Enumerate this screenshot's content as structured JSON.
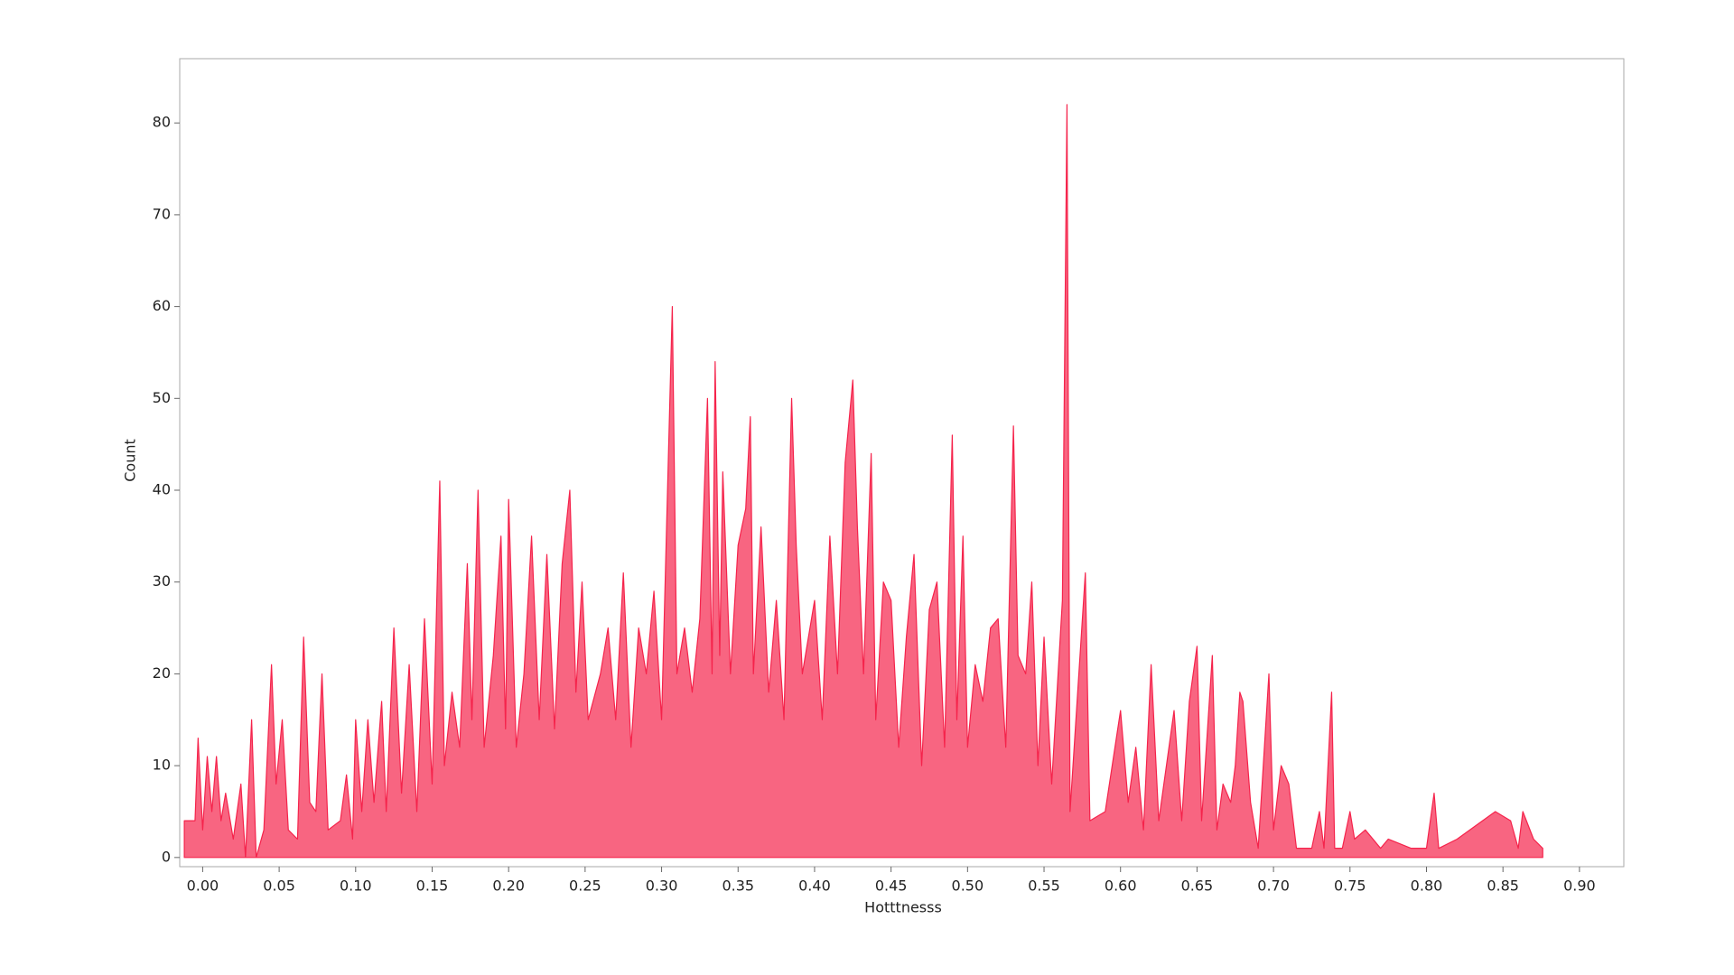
{
  "chart_data": {
    "type": "area",
    "xlabel": "Hotttnesss",
    "ylabel": "Count",
    "color": "#f5234b",
    "x": [
      -0.012,
      -0.005,
      -0.003,
      0.0,
      0.003,
      0.006,
      0.009,
      0.012,
      0.015,
      0.02,
      0.025,
      0.028,
      0.032,
      0.035,
      0.04,
      0.045,
      0.048,
      0.052,
      0.056,
      0.062,
      0.066,
      0.07,
      0.074,
      0.078,
      0.082,
      0.09,
      0.094,
      0.098,
      0.1,
      0.104,
      0.108,
      0.112,
      0.117,
      0.12,
      0.125,
      0.13,
      0.135,
      0.14,
      0.145,
      0.15,
      0.155,
      0.158,
      0.163,
      0.168,
      0.173,
      0.176,
      0.18,
      0.184,
      0.19,
      0.195,
      0.198,
      0.2,
      0.205,
      0.21,
      0.215,
      0.22,
      0.225,
      0.23,
      0.235,
      0.24,
      0.244,
      0.248,
      0.252,
      0.26,
      0.265,
      0.27,
      0.275,
      0.28,
      0.285,
      0.29,
      0.295,
      0.3,
      0.307,
      0.31,
      0.315,
      0.32,
      0.325,
      0.33,
      0.333,
      0.335,
      0.338,
      0.34,
      0.345,
      0.35,
      0.355,
      0.358,
      0.36,
      0.365,
      0.37,
      0.375,
      0.38,
      0.385,
      0.388,
      0.392,
      0.4,
      0.405,
      0.41,
      0.415,
      0.42,
      0.425,
      0.428,
      0.432,
      0.437,
      0.44,
      0.445,
      0.45,
      0.455,
      0.46,
      0.465,
      0.47,
      0.475,
      0.48,
      0.485,
      0.49,
      0.493,
      0.497,
      0.5,
      0.505,
      0.51,
      0.515,
      0.52,
      0.525,
      0.53,
      0.533,
      0.538,
      0.542,
      0.546,
      0.55,
      0.555,
      0.562,
      0.565,
      0.567,
      0.572,
      0.577,
      0.58,
      0.59,
      0.6,
      0.605,
      0.61,
      0.615,
      0.62,
      0.625,
      0.63,
      0.635,
      0.64,
      0.645,
      0.65,
      0.653,
      0.66,
      0.663,
      0.667,
      0.672,
      0.675,
      0.678,
      0.68,
      0.685,
      0.69,
      0.697,
      0.7,
      0.705,
      0.71,
      0.715,
      0.725,
      0.73,
      0.733,
      0.738,
      0.74,
      0.745,
      0.75,
      0.753,
      0.76,
      0.77,
      0.775,
      0.79,
      0.8,
      0.805,
      0.808,
      0.82,
      0.845,
      0.855,
      0.86,
      0.863,
      0.87,
      0.876
    ],
    "values": [
      4,
      4,
      13,
      3,
      11,
      5,
      11,
      4,
      7,
      2,
      8,
      0,
      15,
      0,
      3,
      21,
      8,
      15,
      3,
      2,
      24,
      6,
      5,
      20,
      3,
      4,
      9,
      2,
      15,
      5,
      15,
      6,
      17,
      5,
      25,
      7,
      21,
      5,
      26,
      8,
      41,
      10,
      18,
      12,
      32,
      15,
      40,
      12,
      22,
      35,
      14,
      39,
      12,
      20,
      35,
      15,
      33,
      14,
      32,
      40,
      18,
      30,
      15,
      20,
      25,
      15,
      31,
      12,
      25,
      20,
      29,
      15,
      60,
      20,
      25,
      18,
      26,
      50,
      20,
      54,
      22,
      42,
      20,
      34,
      38,
      48,
      20,
      36,
      18,
      28,
      15,
      50,
      34,
      20,
      28,
      15,
      35,
      20,
      43,
      52,
      36,
      20,
      44,
      15,
      30,
      28,
      12,
      24,
      33,
      10,
      27,
      30,
      12,
      46,
      15,
      35,
      12,
      21,
      17,
      25,
      26,
      12,
      47,
      22,
      20,
      30,
      10,
      24,
      8,
      28,
      82,
      5,
      18,
      31,
      4,
      5,
      16,
      6,
      12,
      3,
      21,
      4,
      10,
      16,
      4,
      17,
      23,
      4,
      22,
      3,
      8,
      6,
      10,
      18,
      17,
      6,
      1,
      20,
      3,
      10,
      8,
      1,
      1,
      5,
      1,
      18,
      1,
      1,
      5,
      2,
      3,
      1,
      2,
      1,
      1,
      7,
      1,
      2,
      5,
      4,
      1,
      5,
      2,
      1
    ],
    "xlim": [
      -0.015,
      0.929
    ],
    "ylim": [
      -1,
      87
    ],
    "xticks": [
      {
        "value": 0,
        "label": "0.00"
      },
      {
        "value": 0.05,
        "label": "0.05"
      },
      {
        "value": 0.1,
        "label": "0.10"
      },
      {
        "value": 0.15,
        "label": "0.15"
      },
      {
        "value": 0.2,
        "label": "0.20"
      },
      {
        "value": 0.25,
        "label": "0.25"
      },
      {
        "value": 0.3,
        "label": "0.30"
      },
      {
        "value": 0.35,
        "label": "0.35"
      },
      {
        "value": 0.4,
        "label": "0.40"
      },
      {
        "value": 0.45,
        "label": "0.45"
      },
      {
        "value": 0.5,
        "label": "0.50"
      },
      {
        "value": 0.55,
        "label": "0.55"
      },
      {
        "value": 0.6,
        "label": "0.60"
      },
      {
        "value": 0.65,
        "label": "0.65"
      },
      {
        "value": 0.7,
        "label": "0.70"
      },
      {
        "value": 0.75,
        "label": "0.75"
      },
      {
        "value": 0.8,
        "label": "0.80"
      },
      {
        "value": 0.85,
        "label": "0.85"
      },
      {
        "value": 0.9,
        "label": "0.90"
      }
    ],
    "yticks": [
      0,
      10,
      20,
      30,
      40,
      50,
      60,
      70,
      80
    ]
  }
}
